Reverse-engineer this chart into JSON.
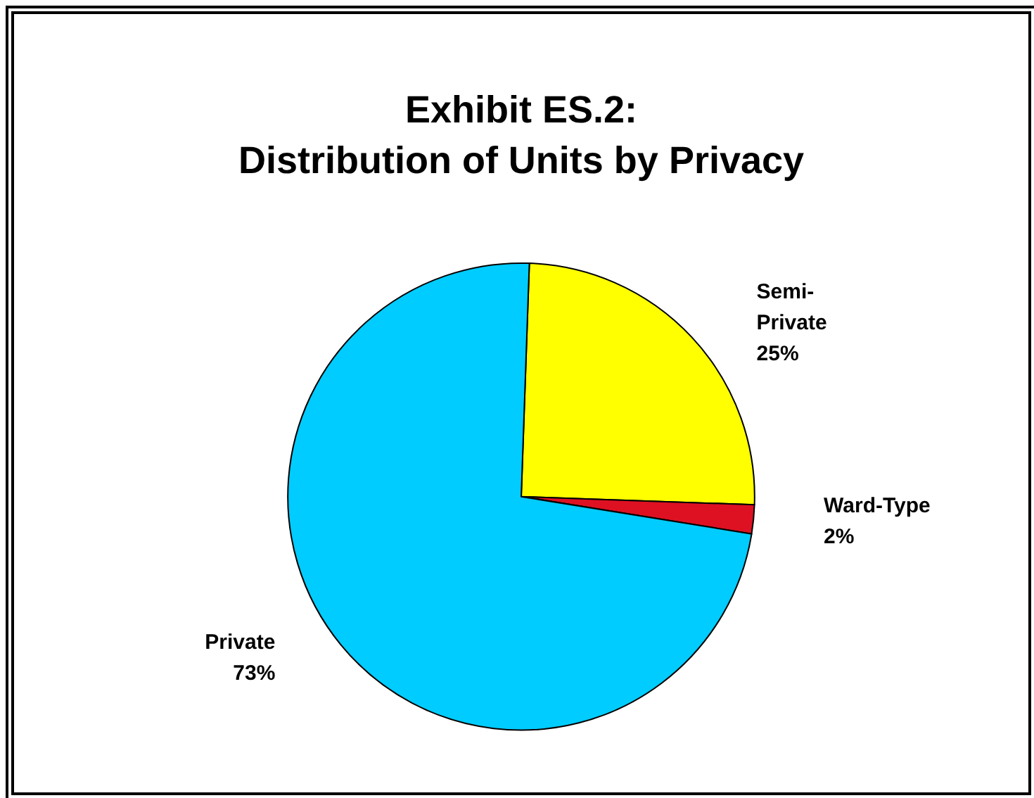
{
  "chart_data": {
    "type": "pie",
    "title": "Exhibit ES.2:\nDistribution of Units by Privacy",
    "categories": [
      "Semi-Private",
      "Ward-Type",
      "Private"
    ],
    "values": [
      25,
      2,
      73
    ],
    "colors": [
      "#ffff00",
      "#dd1122",
      "#00ccff"
    ],
    "value_labels": [
      "25%",
      "2%",
      "73%"
    ],
    "legend": false
  }
}
